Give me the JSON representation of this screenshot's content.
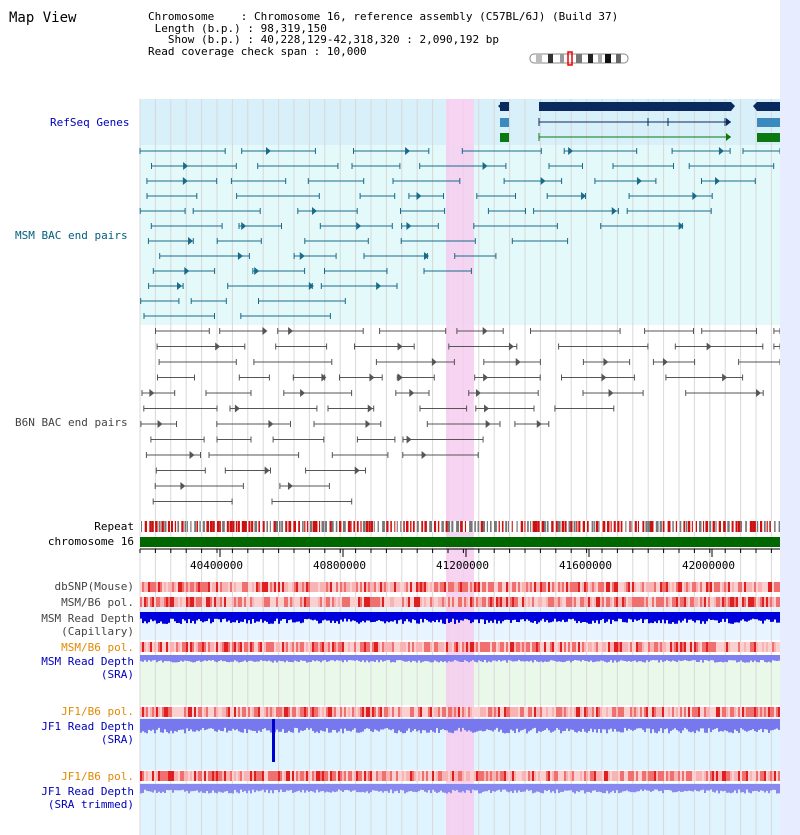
{
  "page": {
    "title": "Map View"
  },
  "info": {
    "chromosome_label": "Chromosome",
    "chromosome_value": "Chromosome 16, reference assembly (C57BL/6J) (Build 37)",
    "length_label": "Length (b.p.)",
    "length_value": "98,319,150",
    "show_label": "Show (b.p.)",
    "show_value": "40,228,129-42,318,320 : 2,090,192 bp",
    "coverage_label": "Read coverage check span",
    "coverage_value": "10,000"
  },
  "tracks": {
    "refseq": "RefSeq Genes",
    "msm_bac": "MSM BAC end pairs",
    "b6n_bac": "B6N BAC end pairs",
    "repeat": "Repeat",
    "chromosome": "chromosome 16",
    "dbsnp": "dbSNP(Mouse)",
    "msm_b6_pol_1": "MSM/B6 pol.",
    "msm_depth_cap_1": "MSM Read Depth",
    "msm_depth_cap_2": "(Capillary)",
    "msm_b6_pol_2": "MSM/B6 pol.",
    "msm_depth_sra_1": "MSM Read Depth",
    "msm_depth_sra_2": "(SRA)",
    "jf1_b6_pol_1": "JF1/B6 pol.",
    "jf1_depth_sra_1": "JF1 Read Depth",
    "jf1_depth_sra_2": "(SRA)",
    "jf1_b6_pol_2": "JF1/B6 pol.",
    "jf1_depth_trim_1": "JF1 Read Depth",
    "jf1_depth_trim_2": "(SRA trimmed)"
  },
  "axis": {
    "ticks": [
      "40400000",
      "40800000",
      "41200000",
      "41600000",
      "42000000"
    ]
  },
  "colors": {
    "refseq_bg": "#d8f0fa",
    "msm_bg": "#e4fafa",
    "highlight": "#f6ccef",
    "gene_dark": "#0a2a5e",
    "gene_mid": "#3a8ac0",
    "gene_green": "#0a7a10",
    "chromosome": "#006600",
    "msm_line": "#1a6a8a",
    "b6n_line": "#555555",
    "depth_blue": "#0000dd",
    "depth_light": "#7f7ff0"
  }
}
